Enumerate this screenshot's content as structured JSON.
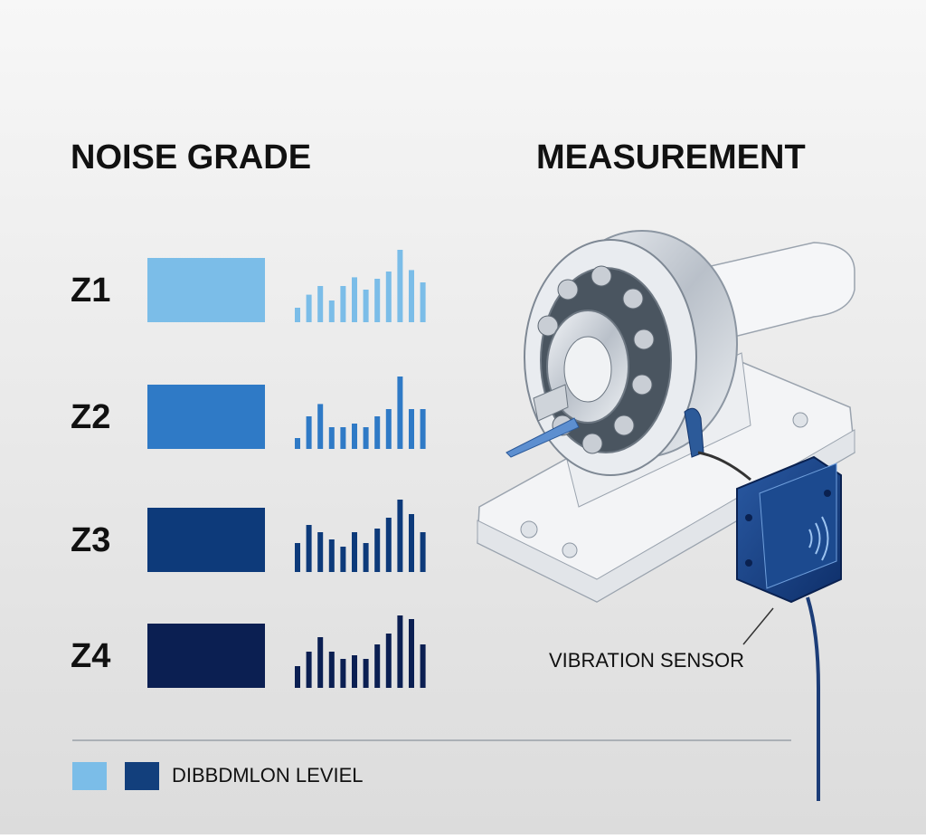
{
  "header": {
    "left_title": "NOISE GRADE",
    "right_title": "MEASUREMENT"
  },
  "grades": [
    {
      "label": "Z1",
      "color": "#7bbde8"
    },
    {
      "label": "Z2",
      "color": "#2f7ac6"
    },
    {
      "label": "Z3",
      "color": "#0d3a7a"
    },
    {
      "label": "Z4",
      "color": "#0b1f52"
    }
  ],
  "callout": "VIBRATION SENSOR",
  "legend": {
    "label": "DIBBDMLON LEVIEL",
    "colors": [
      "#7bbde8",
      "#123f7c"
    ]
  }
}
